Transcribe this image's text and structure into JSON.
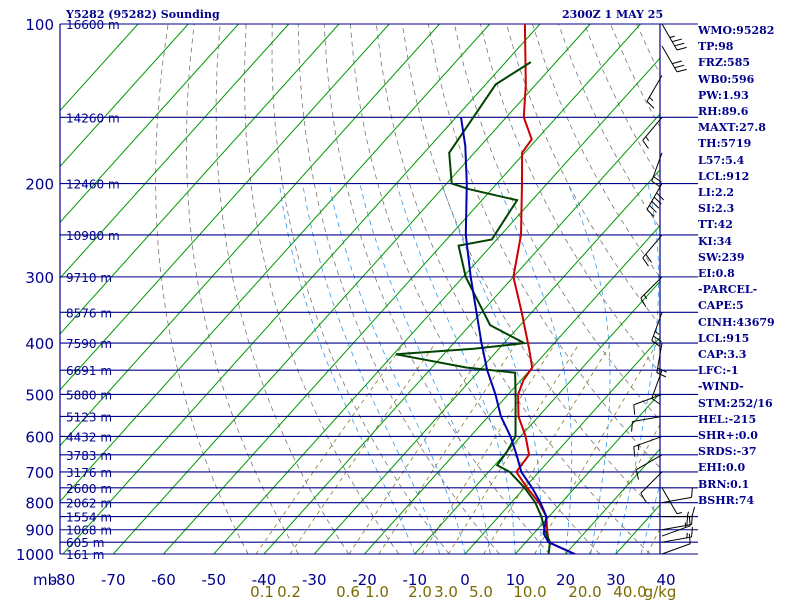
{
  "header": {
    "title": "Y5282 (95282) Sounding",
    "timestamp": "2300Z  1 MAY 25"
  },
  "indices": [
    "WMO:95282",
    "TP:98",
    "FRZ:585",
    "WB0:596",
    "PW:1.93",
    "RH:89.6",
    "MAXT:27.8",
    "TH:5719",
    "L57:5.4",
    "LCL:912",
    "LI:2.2",
    "SI:2.3",
    "TT:42",
    "KI:34",
    "SW:239",
    "EI:0.8",
    "-PARCEL-",
    "CAPE:5",
    "CINH:43679",
    "LCL:915",
    "CAP:3.3",
    "LFC:-1",
    "-WIND-",
    "STM:252/16",
    "HEL:-215",
    "SHR+:0.0",
    "SRDS:-37",
    "EHI:0.0",
    "BRN:0.1",
    "BSHR:74"
  ],
  "chart_data": {
    "type": "line",
    "title": "Y5282 (95282) Sounding",
    "xlabel": "",
    "ylabel": "mb",
    "y_scale": "log",
    "ylim": [
      1000,
      100
    ],
    "xlim": [
      -80,
      40
    ],
    "pressure_ticks": [
      100,
      200,
      300,
      400,
      500,
      600,
      700,
      800,
      900,
      1000
    ],
    "pressure_labels": [
      "100",
      "200",
      "300",
      "400",
      "500",
      "600",
      "700",
      "800",
      "900",
      "1000"
    ],
    "temp_ticks": [
      -80,
      -70,
      -60,
      -50,
      -40,
      -30,
      -20,
      -10,
      0,
      10,
      20,
      30,
      40
    ],
    "temp_labels": [
      "-80",
      "-70",
      "-60",
      "-50",
      "-40",
      "-30",
      "-20",
      "-10",
      "0",
      "10",
      "20",
      "30",
      "40"
    ],
    "mixing_ratio_labels": [
      "0.1",
      "0.2",
      "0.6",
      "1.0",
      "2.0",
      "3.0",
      "5.0",
      "10.0",
      "20.0",
      "40.0",
      "g/kg"
    ],
    "height_labels": [
      {
        "p": 100,
        "label": "16600 m"
      },
      {
        "p": 150,
        "label": "14260 m"
      },
      {
        "p": 200,
        "label": "12460 m"
      },
      {
        "p": 250,
        "label": "10980 m"
      },
      {
        "p": 300,
        "label": "9710 m"
      },
      {
        "p": 350,
        "label": "8576 m"
      },
      {
        "p": 400,
        "label": "7590 m"
      },
      {
        "p": 450,
        "label": "6691 m"
      },
      {
        "p": 500,
        "label": "5880 m"
      },
      {
        "p": 550,
        "label": "5123 m"
      },
      {
        "p": 600,
        "label": "4432 m"
      },
      {
        "p": 650,
        "label": "3783 m"
      },
      {
        "p": 700,
        "label": "3176 m"
      },
      {
        "p": 750,
        "label": "2600 m"
      },
      {
        "p": 800,
        "label": "2062 m"
      },
      {
        "p": 850,
        "label": "1554 m"
      },
      {
        "p": 900,
        "label": "1068 m"
      },
      {
        "p": 950,
        "label": "605 m"
      },
      {
        "p": 1000,
        "label": "161 m"
      }
    ],
    "grid": true,
    "series": [
      {
        "name": "",
        "kind": "temperature",
        "color": "#cc0000",
        "points": [
          [
            1005,
            22.5
          ],
          [
            950,
            14.5
          ],
          [
            900,
            12
          ],
          [
            850,
            9.5
          ],
          [
            800,
            5.5
          ],
          [
            750,
            0.5
          ],
          [
            700,
            -4.5
          ],
          [
            650,
            -5
          ],
          [
            600,
            -9
          ],
          [
            550,
            -14
          ],
          [
            500,
            -18
          ],
          [
            470,
            -19.5
          ],
          [
            445,
            -20
          ],
          [
            410,
            -24
          ],
          [
            350,
            -32
          ],
          [
            300,
            -40
          ],
          [
            250,
            -46
          ],
          [
            200,
            -55
          ],
          [
            175,
            -60.5
          ],
          [
            165,
            -61
          ],
          [
            150,
            -66.5
          ],
          [
            130,
            -72
          ],
          [
            100,
            -83
          ]
        ]
      },
      {
        "name": "",
        "kind": "dewpoint",
        "color": "#004400",
        "points": [
          [
            1005,
            16.8
          ],
          [
            950,
            14.8
          ],
          [
            900,
            11.5
          ],
          [
            850,
            8.5
          ],
          [
            800,
            4.8
          ],
          [
            750,
            0
          ],
          [
            700,
            -5.8
          ],
          [
            680,
            -9.5
          ],
          [
            640,
            -10
          ],
          [
            600,
            -11
          ],
          [
            500,
            -18.5
          ],
          [
            455,
            -22.5
          ],
          [
            445,
            -33
          ],
          [
            420,
            -49.5
          ],
          [
            410,
            -35
          ],
          [
            400,
            -26
          ],
          [
            370,
            -36
          ],
          [
            300,
            -49.5
          ],
          [
            262,
            -56.5
          ],
          [
            255,
            -51
          ],
          [
            215,
            -53
          ],
          [
            205,
            -64.5
          ],
          [
            200,
            -69
          ],
          [
            175,
            -75
          ],
          [
            130,
            -78
          ],
          [
            118,
            -75
          ]
        ]
      },
      {
        "name": "",
        "kind": "parcel",
        "color": "#0000b0",
        "points": [
          [
            1005,
            22.5
          ],
          [
            950,
            14.5
          ],
          [
            915,
            12
          ],
          [
            850,
            9.5
          ],
          [
            800,
            5.8
          ],
          [
            750,
            1.5
          ],
          [
            700,
            -3.5
          ],
          [
            650,
            -7.5
          ],
          [
            600,
            -12
          ],
          [
            550,
            -17.5
          ],
          [
            500,
            -22.5
          ],
          [
            450,
            -28.5
          ],
          [
            400,
            -34.5
          ],
          [
            350,
            -41
          ],
          [
            300,
            -48.5
          ],
          [
            250,
            -57
          ],
          [
            200,
            -66
          ],
          [
            170,
            -73
          ],
          [
            150,
            -79
          ]
        ]
      }
    ],
    "wind_barbs": [
      {
        "p": 1000,
        "dir": 250,
        "speed": 10
      },
      {
        "p": 950,
        "dir": 260,
        "speed": 15
      },
      {
        "p": 925,
        "dir": 250,
        "speed": 15
      },
      {
        "p": 900,
        "dir": 260,
        "speed": 20
      },
      {
        "p": 850,
        "dir": 270,
        "speed": 15
      },
      {
        "p": 800,
        "dir": 260,
        "speed": 10
      },
      {
        "p": 750,
        "dir": 330,
        "speed": 5
      },
      {
        "p": 700,
        "dir": 45,
        "speed": 10
      },
      {
        "p": 650,
        "dir": 60,
        "speed": 10
      },
      {
        "p": 600,
        "dir": 70,
        "speed": 15
      },
      {
        "p": 550,
        "dir": 80,
        "speed": 10
      },
      {
        "p": 500,
        "dir": 70,
        "speed": 10
      },
      {
        "p": 450,
        "dir": 20,
        "speed": 15
      },
      {
        "p": 400,
        "dir": 10,
        "speed": 20
      },
      {
        "p": 350,
        "dir": 20,
        "speed": 25
      },
      {
        "p": 300,
        "dir": 45,
        "speed": 15
      },
      {
        "p": 250,
        "dir": 40,
        "speed": 20
      },
      {
        "p": 200,
        "dir": 30,
        "speed": 50
      },
      {
        "p": 175,
        "dir": 20,
        "speed": 20
      },
      {
        "p": 150,
        "dir": 40,
        "speed": 15
      },
      {
        "p": 125,
        "dir": 30,
        "speed": 15
      },
      {
        "p": 110,
        "dir": 330,
        "speed": 30
      },
      {
        "p": 100,
        "dir": 330,
        "speed": 35
      }
    ]
  }
}
